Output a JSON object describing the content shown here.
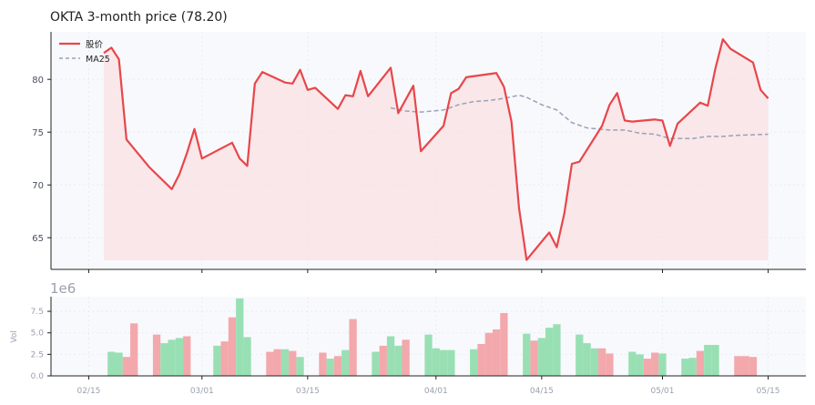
{
  "chart_data": [
    {
      "type": "line",
      "title": "OKTA  3-month price (78.20)",
      "x_ticks": [
        "02/15",
        "03/01",
        "03/15",
        "04/01",
        "04/15",
        "05/01",
        "05/15"
      ],
      "x_tick_dates": [
        "2024-02-15",
        "2024-03-01",
        "2024-03-15",
        "2024-04-01",
        "2024-04-15",
        "2024-05-01",
        "2024-05-15"
      ],
      "y_ticks": [
        65,
        70,
        75,
        80
      ],
      "ylim": [
        62,
        84.5
      ],
      "grid": true,
      "legend_position": "top-left",
      "colors": {
        "price": "#e8464a",
        "ma": "#98a2b8",
        "fill": "#f9e0e3",
        "up": "#98e0b4",
        "down": "#f3a8ac",
        "panel_bg": "#f8f9fc"
      },
      "series": [
        {
          "name": "股价",
          "style": "solid",
          "points": [
            [
              "2024-02-17",
              82.5
            ],
            [
              "2024-02-18",
              83.0
            ],
            [
              "2024-02-19",
              81.9
            ],
            [
              "2024-02-20",
              74.3
            ],
            [
              "2024-02-23",
              71.7
            ],
            [
              "2024-02-26",
              69.6
            ],
            [
              "2024-02-27",
              71.0
            ],
            [
              "2024-02-28",
              73.0
            ],
            [
              "2024-02-29",
              75.3
            ],
            [
              "2024-03-01",
              72.5
            ],
            [
              "2024-03-05",
              74.0
            ],
            [
              "2024-03-06",
              72.5
            ],
            [
              "2024-03-07",
              71.8
            ],
            [
              "2024-03-08",
              79.6
            ],
            [
              "2024-03-09",
              80.7
            ],
            [
              "2024-03-12",
              79.7
            ],
            [
              "2024-03-13",
              79.6
            ],
            [
              "2024-03-14",
              80.9
            ],
            [
              "2024-03-15",
              79.0
            ],
            [
              "2024-03-16",
              79.2
            ],
            [
              "2024-03-19",
              77.2
            ],
            [
              "2024-03-20",
              78.5
            ],
            [
              "2024-03-21",
              78.4
            ],
            [
              "2024-03-22",
              80.8
            ],
            [
              "2024-03-23",
              78.4
            ],
            [
              "2024-03-26",
              81.1
            ],
            [
              "2024-03-27",
              76.8
            ],
            [
              "2024-03-29",
              79.4
            ],
            [
              "2024-03-30",
              73.2
            ],
            [
              "2024-04-02",
              75.6
            ],
            [
              "2024-04-03",
              78.7
            ],
            [
              "2024-04-04",
              79.1
            ],
            [
              "2024-04-05",
              80.2
            ],
            [
              "2024-04-09",
              80.6
            ],
            [
              "2024-04-10",
              79.3
            ],
            [
              "2024-04-11",
              76.0
            ],
            [
              "2024-04-12",
              67.8
            ],
            [
              "2024-04-13",
              62.9
            ],
            [
              "2024-04-16",
              65.5
            ],
            [
              "2024-04-17",
              64.1
            ],
            [
              "2024-04-18",
              67.3
            ],
            [
              "2024-04-19",
              72.0
            ],
            [
              "2024-04-20",
              72.2
            ],
            [
              "2024-04-23",
              75.6
            ],
            [
              "2024-04-24",
              77.6
            ],
            [
              "2024-04-25",
              78.7
            ],
            [
              "2024-04-26",
              76.1
            ],
            [
              "2024-04-27",
              76.0
            ],
            [
              "2024-04-30",
              76.2
            ],
            [
              "2024-05-01",
              76.1
            ],
            [
              "2024-05-02",
              73.7
            ],
            [
              "2024-05-03",
              75.8
            ],
            [
              "2024-05-06",
              77.8
            ],
            [
              "2024-05-07",
              77.5
            ],
            [
              "2024-05-08",
              81.0
            ],
            [
              "2024-05-09",
              83.8
            ],
            [
              "2024-05-10",
              82.9
            ],
            [
              "2024-05-13",
              81.6
            ],
            [
              "2024-05-14",
              79.0
            ],
            [
              "2024-05-15",
              78.2
            ]
          ]
        },
        {
          "name": "MA25",
          "style": "dashed",
          "points": [
            [
              "2024-03-26",
              77.3
            ],
            [
              "2024-03-28",
              77.0
            ],
            [
              "2024-03-30",
              76.9
            ],
            [
              "2024-04-02",
              77.1
            ],
            [
              "2024-04-04",
              77.6
            ],
            [
              "2024-04-06",
              77.9
            ],
            [
              "2024-04-08",
              78.0
            ],
            [
              "2024-04-10",
              78.2
            ],
            [
              "2024-04-12",
              78.5
            ],
            [
              "2024-04-13",
              78.3
            ],
            [
              "2024-04-15",
              77.6
            ],
            [
              "2024-04-17",
              77.1
            ],
            [
              "2024-04-19",
              75.9
            ],
            [
              "2024-04-21",
              75.4
            ],
            [
              "2024-04-24",
              75.2
            ],
            [
              "2024-04-26",
              75.2
            ],
            [
              "2024-04-28",
              74.9
            ],
            [
              "2024-04-30",
              74.8
            ],
            [
              "2024-05-02",
              74.4
            ],
            [
              "2024-05-05",
              74.4
            ],
            [
              "2024-05-07",
              74.6
            ],
            [
              "2024-05-09",
              74.6
            ],
            [
              "2024-05-11",
              74.7
            ],
            [
              "2024-05-15",
              74.8
            ]
          ]
        }
      ]
    },
    {
      "type": "bar",
      "ylabel": "Vol",
      "exponent_label": "1e6",
      "y_ticks": [
        "0.0",
        "2.5",
        "5.0",
        "7.5"
      ],
      "y_tick_values": [
        0,
        2.5,
        5,
        7.5
      ],
      "ylim": [
        0,
        9.2
      ],
      "bars": [
        [
          "2024-02-18",
          2.8,
          "up"
        ],
        [
          "2024-02-19",
          2.7,
          "up"
        ],
        [
          "2024-02-20",
          2.2,
          "down"
        ],
        [
          "2024-02-21",
          6.1,
          "down"
        ],
        [
          "2024-02-24",
          4.8,
          "down"
        ],
        [
          "2024-02-25",
          3.8,
          "up"
        ],
        [
          "2024-02-26",
          4.2,
          "up"
        ],
        [
          "2024-02-27",
          4.4,
          "up"
        ],
        [
          "2024-02-28",
          4.6,
          "down"
        ],
        [
          "2024-03-03",
          3.5,
          "up"
        ],
        [
          "2024-03-04",
          4.0,
          "down"
        ],
        [
          "2024-03-05",
          6.8,
          "down"
        ],
        [
          "2024-03-06",
          9.0,
          "up"
        ],
        [
          "2024-03-07",
          4.5,
          "up"
        ],
        [
          "2024-03-10",
          2.8,
          "down"
        ],
        [
          "2024-03-11",
          3.1,
          "down"
        ],
        [
          "2024-03-12",
          3.1,
          "up"
        ],
        [
          "2024-03-13",
          2.9,
          "down"
        ],
        [
          "2024-03-14",
          2.2,
          "up"
        ],
        [
          "2024-03-17",
          2.7,
          "down"
        ],
        [
          "2024-03-18",
          2.0,
          "up"
        ],
        [
          "2024-03-19",
          2.3,
          "down"
        ],
        [
          "2024-03-20",
          3.0,
          "up"
        ],
        [
          "2024-03-21",
          6.6,
          "down"
        ],
        [
          "2024-03-24",
          2.8,
          "up"
        ],
        [
          "2024-03-25",
          3.5,
          "down"
        ],
        [
          "2024-03-26",
          4.6,
          "up"
        ],
        [
          "2024-03-27",
          3.5,
          "up"
        ],
        [
          "2024-03-28",
          4.2,
          "down"
        ],
        [
          "2024-03-31",
          4.8,
          "up"
        ],
        [
          "2024-04-01",
          3.2,
          "up"
        ],
        [
          "2024-04-02",
          3.0,
          "up"
        ],
        [
          "2024-04-03",
          3.0,
          "up"
        ],
        [
          "2024-04-06",
          3.1,
          "up"
        ],
        [
          "2024-04-07",
          3.7,
          "down"
        ],
        [
          "2024-04-08",
          5.0,
          "down"
        ],
        [
          "2024-04-09",
          5.4,
          "down"
        ],
        [
          "2024-04-10",
          7.3,
          "down"
        ],
        [
          "2024-04-13",
          4.9,
          "up"
        ],
        [
          "2024-04-14",
          4.1,
          "down"
        ],
        [
          "2024-04-15",
          4.4,
          "up"
        ],
        [
          "2024-04-16",
          5.6,
          "up"
        ],
        [
          "2024-04-17",
          6.0,
          "up"
        ],
        [
          "2024-04-20",
          4.8,
          "up"
        ],
        [
          "2024-04-21",
          3.8,
          "up"
        ],
        [
          "2024-04-22",
          3.2,
          "up"
        ],
        [
          "2024-04-23",
          3.2,
          "down"
        ],
        [
          "2024-04-24",
          2.6,
          "down"
        ],
        [
          "2024-04-27",
          2.8,
          "up"
        ],
        [
          "2024-04-28",
          2.5,
          "up"
        ],
        [
          "2024-04-29",
          2.0,
          "down"
        ],
        [
          "2024-04-30",
          2.7,
          "down"
        ],
        [
          "2024-05-01",
          2.6,
          "up"
        ],
        [
          "2024-05-04",
          2.0,
          "up"
        ],
        [
          "2024-05-05",
          2.1,
          "up"
        ],
        [
          "2024-05-06",
          2.9,
          "down"
        ],
        [
          "2024-05-07",
          3.6,
          "up"
        ],
        [
          "2024-05-08",
          3.6,
          "up"
        ],
        [
          "2024-05-11",
          2.3,
          "down"
        ],
        [
          "2024-05-12",
          2.3,
          "down"
        ],
        [
          "2024-05-13",
          2.2,
          "down"
        ]
      ]
    }
  ]
}
